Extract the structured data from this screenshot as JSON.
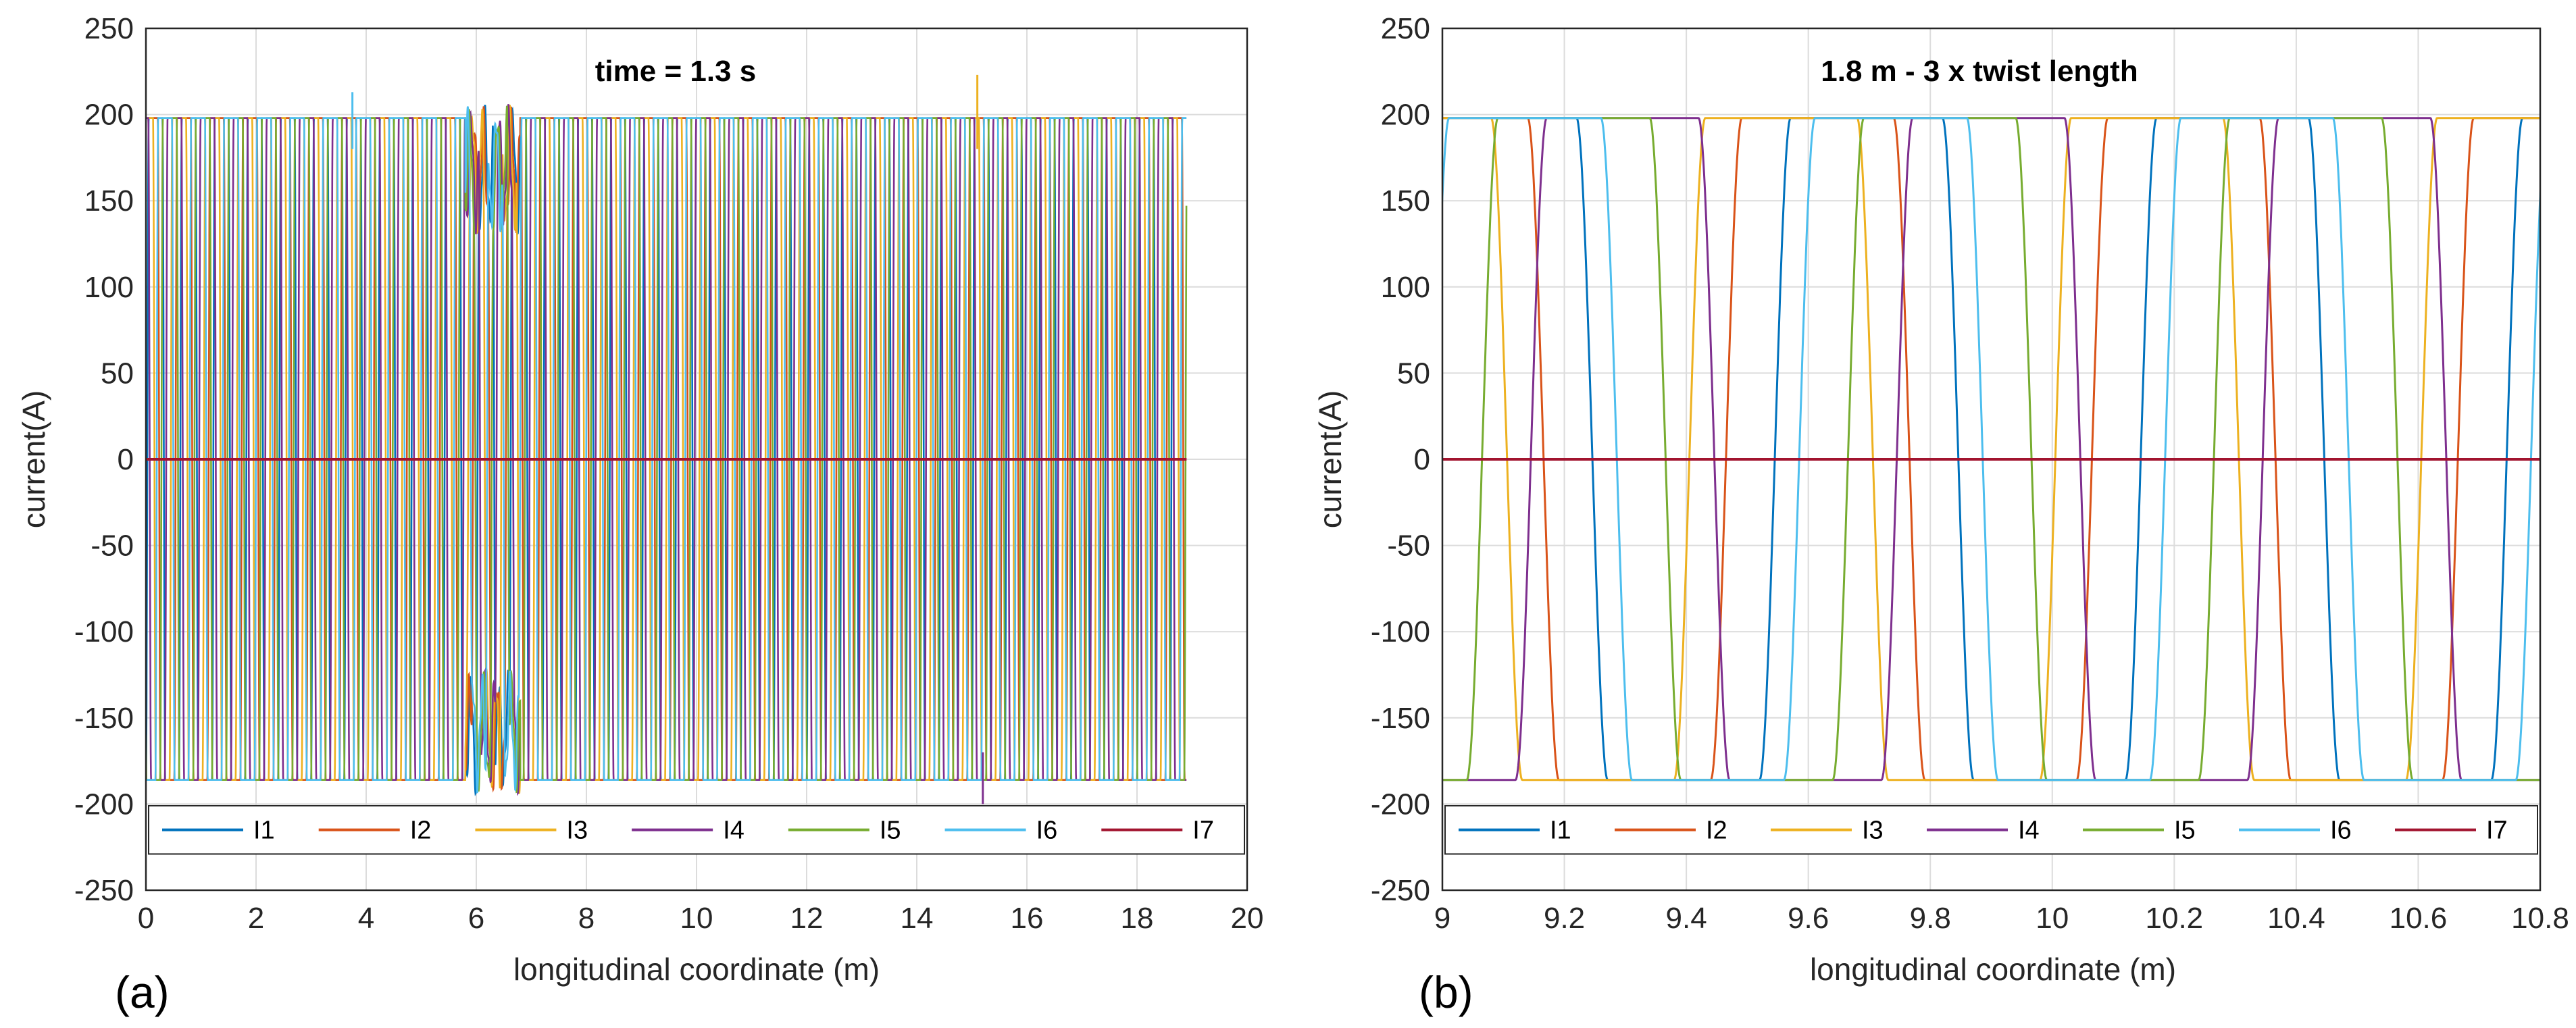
{
  "chart_data": [
    {
      "panel_label": "(a)",
      "type": "line",
      "title": "time = 1.3 s",
      "xlabel": "longitudinal coordinate (m)",
      "ylabel": "current(A)",
      "xlim": [
        0,
        20
      ],
      "ylim": [
        -250,
        250
      ],
      "xticks": [
        "0",
        "2",
        "4",
        "6",
        "8",
        "10",
        "12",
        "14",
        "16",
        "18",
        "20"
      ],
      "yticks": [
        "250",
        "200",
        "150",
        "100",
        "50",
        "0",
        "-50",
        "-100",
        "-150",
        "-200",
        "-250"
      ],
      "grid": true,
      "legend": "bottom, inside axes, horizontal",
      "x_range_data": [
        0,
        18.9
      ],
      "twist_period_m": 0.6,
      "amplitude_high": 198,
      "amplitude_low": -186,
      "I7_level": 0,
      "disturbance_region_m": [
        5.8,
        6.8
      ],
      "spikes": [
        {
          "x": 3.75,
          "y": 213
        },
        {
          "x": 15.1,
          "y": 223
        },
        {
          "x": 15.2,
          "y": -200
        }
      ],
      "series": [
        {
          "name": "I1",
          "color": "#0072BD",
          "phase_offset": 0.0
        },
        {
          "name": "I2",
          "color": "#D95319",
          "phase_offset": 0.142857
        },
        {
          "name": "I3",
          "color": "#EDB120",
          "phase_offset": 0.285714
        },
        {
          "name": "I4",
          "color": "#7E2F8E",
          "phase_offset": 0.428571
        },
        {
          "name": "I5",
          "color": "#77AC30",
          "phase_offset": 0.571429
        },
        {
          "name": "I6",
          "color": "#4DBEEE",
          "phase_offset": 0.714286
        },
        {
          "name": "I7",
          "color": "#A2142F",
          "constant": 0
        }
      ]
    },
    {
      "panel_label": "(b)",
      "type": "line",
      "title": "1.8 m - 3 x twist length",
      "xlabel": "longitudinal coordinate (m)",
      "ylabel": "current(A)",
      "xlim": [
        9,
        10.8
      ],
      "ylim": [
        -250,
        250
      ],
      "xticks": [
        "9",
        "9.2",
        "9.4",
        "9.6",
        "9.8",
        "10",
        "10.2",
        "10.4",
        "10.6",
        "10.8"
      ],
      "yticks": [
        "250",
        "200",
        "150",
        "100",
        "50",
        "0",
        "-50",
        "-100",
        "-150",
        "-200",
        "-250"
      ],
      "grid": true,
      "legend": "bottom, inside axes, horizontal",
      "twist_period_m": 0.6,
      "amplitude_high": 198,
      "amplitude_low": -186,
      "I7_level": 0,
      "series": [
        {
          "name": "I1",
          "color": "#0072BD",
          "high_centers_m": [
            9.07,
            9.67,
            10.27
          ],
          "low_centers_m": [
            9.37,
            9.97,
            10.57
          ]
        },
        {
          "name": "I2",
          "color": "#D95319",
          "high_centers_m": [
            8.99,
            9.59,
            10.19,
            10.79
          ],
          "low_centers_m": [
            9.29,
            9.89,
            10.49
          ]
        },
        {
          "name": "I3",
          "color": "#EDB120",
          "high_centers_m": [
            9.53,
            10.13,
            10.73
          ],
          "low_centers_m": [
            9.23,
            9.83,
            10.43
          ]
        },
        {
          "name": "I4",
          "color": "#7E2F8E",
          "high_centers_m": [
            9.27,
            9.87,
            10.47
          ],
          "low_centers_m": [
            8.97,
            9.57,
            10.17,
            10.77
          ]
        },
        {
          "name": "I5",
          "color": "#77AC30",
          "high_centers_m": [
            9.19,
            9.79,
            10.39
          ],
          "low_centers_m": [
            9.49,
            10.09,
            10.69
          ]
        },
        {
          "name": "I6",
          "color": "#4DBEEE",
          "high_centers_m": [
            9.11,
            9.71,
            10.31
          ],
          "low_centers_m": [
            9.41,
            10.01,
            10.61
          ]
        },
        {
          "name": "I7",
          "color": "#A2142F",
          "constant": 0
        }
      ]
    }
  ]
}
